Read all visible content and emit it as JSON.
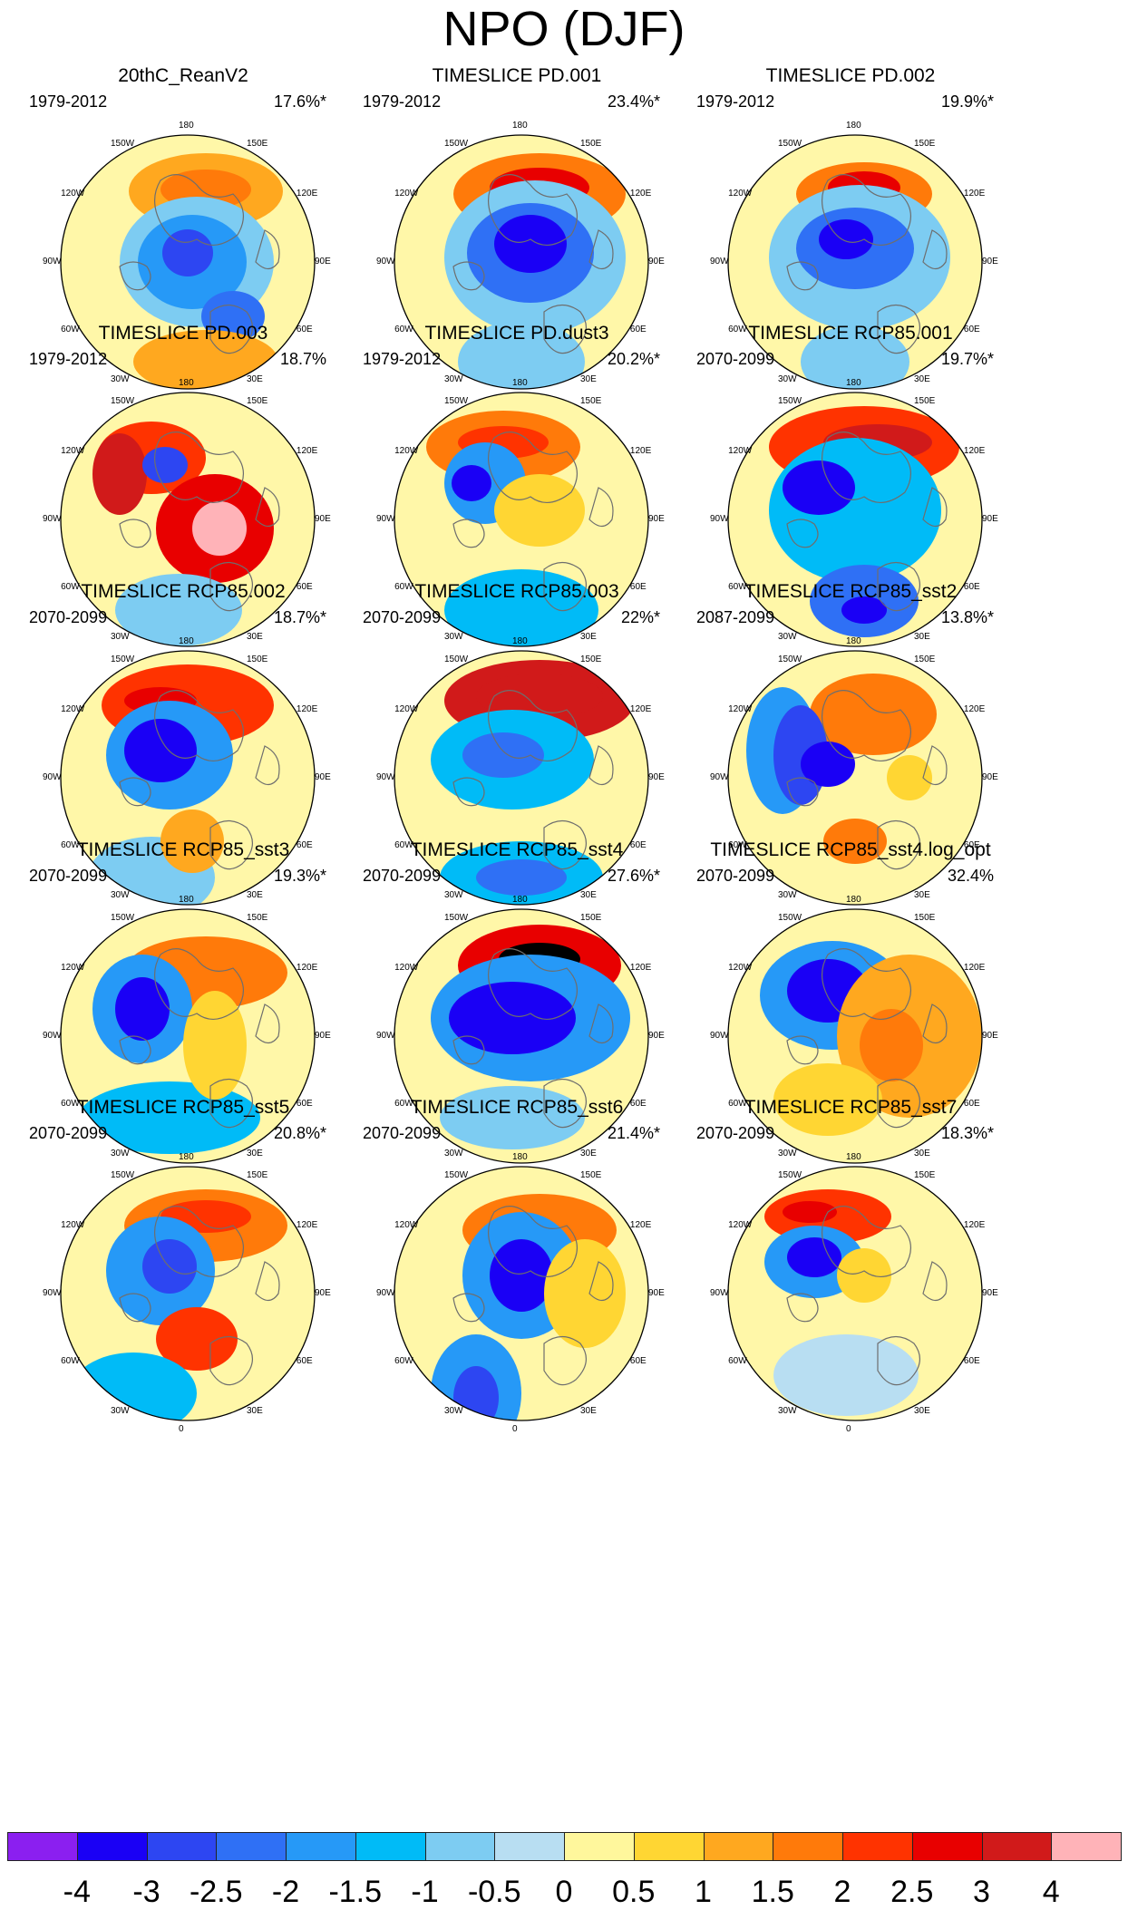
{
  "title": "NPO (DJF)",
  "lon_labels": [
    "180",
    "150E",
    "120E",
    "90E",
    "60E",
    "30E",
    "0",
    "30W",
    "60W",
    "90W",
    "120W",
    "150W"
  ],
  "colors": {
    "bg": "#FFF7A8",
    "coast": "#6e6e6e",
    "scale": [
      "#8B1FF0",
      "#1A00F5",
      "#2D46F2",
      "#2F70F5",
      "#2699F7",
      "#00BBF7",
      "#7DCCF2",
      "#B8DEF2",
      "#FFF79C",
      "#FFD633",
      "#FFA81F",
      "#FF7A0A",
      "#FF3300",
      "#E80000",
      "#D11A1A",
      "#FFB3B8"
    ]
  },
  "colorbar": {
    "labels": [
      "-4",
      "-3",
      "-2.5",
      "-2",
      "-1.5",
      "-1",
      "-0.5",
      "0",
      "0.5",
      "1",
      "1.5",
      "2",
      "2.5",
      "3",
      "4"
    ]
  },
  "panels": [
    {
      "title": "20thC_ReanV2",
      "period": "1979-2012",
      "pct": "17.6%*"
    },
    {
      "title": "TIMESLICE PD.001",
      "period": "1979-2012",
      "pct": "23.4%*"
    },
    {
      "title": "TIMESLICE PD.002",
      "period": "1979-2012",
      "pct": "19.9%*"
    },
    {
      "title": "TIMESLICE PD.003",
      "period": "1979-2012",
      "pct": "18.7%"
    },
    {
      "title": "TIMESLICE PD.dust3",
      "period": "1979-2012",
      "pct": "20.2%*"
    },
    {
      "title": "TIMESLICE RCP85.001",
      "period": "2070-2099",
      "pct": "19.7%*"
    },
    {
      "title": "TIMESLICE RCP85.002",
      "period": "2070-2099",
      "pct": "18.7%*"
    },
    {
      "title": "TIMESLICE RCP85.003",
      "period": "2070-2099",
      "pct": "22%*"
    },
    {
      "title": "TIMESLICE RCP85_sst2",
      "period": "2087-2099",
      "pct": "13.8%*"
    },
    {
      "title": "TIMESLICE RCP85_sst3",
      "period": "2070-2099",
      "pct": "19.3%*"
    },
    {
      "title": "TIMESLICE RCP85_sst4",
      "period": "2070-2099",
      "pct": "27.6%*"
    },
    {
      "title": "TIMESLICE RCP85_sst4.log_opt",
      "period": "2070-2099",
      "pct": "32.4%"
    },
    {
      "title": "TIMESLICE RCP85_sst5",
      "period": "2070-2099",
      "pct": "20.8%*"
    },
    {
      "title": "TIMESLICE RCP85_sst6",
      "period": "2070-2099",
      "pct": "21.4%*"
    },
    {
      "title": "TIMESLICE RCP85_sst7",
      "period": "2070-2099",
      "pct": "18.3%*"
    }
  ]
}
